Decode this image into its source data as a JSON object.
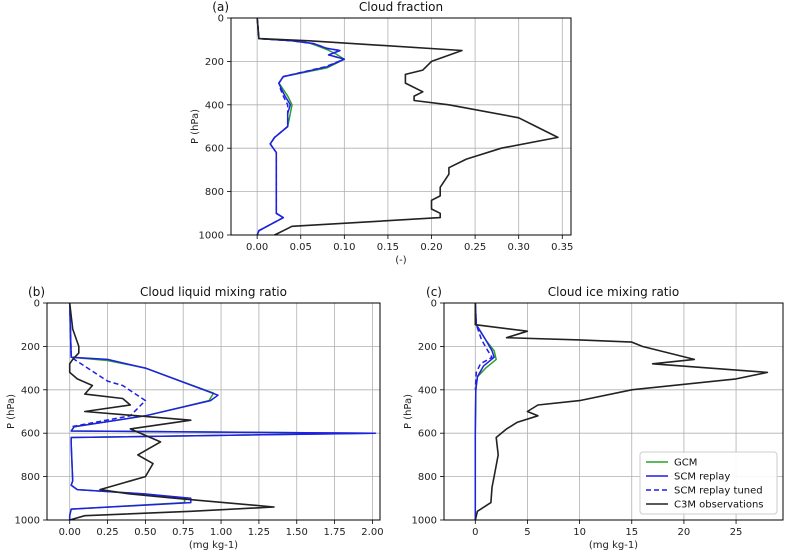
{
  "chart_data": [
    {
      "type": "line",
      "panel_label": "(a)",
      "title": "Cloud fraction",
      "xlabel": "(-)",
      "ylabel": "P (hPa)",
      "xlim": [
        -0.03,
        0.36
      ],
      "ylim": [
        1000,
        0
      ],
      "xticks": [
        "0.00",
        "0.05",
        "0.10",
        "0.15",
        "0.20",
        "0.25",
        "0.30",
        "0.35"
      ],
      "yticks": [
        "0",
        "200",
        "400",
        "600",
        "800",
        "1000"
      ],
      "grid": true,
      "series": [
        {
          "name": "GCM",
          "color": "#2ca02c",
          "dash": "solid",
          "x": [
            0.0,
            0.002,
            0.04,
            0.06,
            0.07,
            0.08,
            0.09,
            0.1,
            0.08,
            0.03,
            0.025,
            0.03,
            0.035,
            0.04,
            0.038,
            0.035,
            0.02,
            0.015,
            0.022,
            0.022,
            0.022,
            0.022,
            0.03,
            0.002,
            0.0
          ],
          "y": [
            0,
            95,
            105,
            115,
            130,
            145,
            165,
            190,
            230,
            270,
            300,
            330,
            360,
            400,
            440,
            500,
            550,
            580,
            620,
            700,
            800,
            900,
            920,
            980,
            1000
          ]
        },
        {
          "name": "SCM replay",
          "color": "#1f1fe6",
          "dash": "solid",
          "x": [
            0.0,
            0.002,
            0.04,
            0.065,
            0.08,
            0.095,
            0.082,
            0.1,
            0.08,
            0.03,
            0.025,
            0.028,
            0.032,
            0.038,
            0.035,
            0.035,
            0.02,
            0.015,
            0.022,
            0.022,
            0.022,
            0.022,
            0.03,
            0.002,
            0.0
          ],
          "y": [
            0,
            95,
            105,
            118,
            140,
            150,
            170,
            190,
            225,
            270,
            300,
            330,
            360,
            400,
            440,
            500,
            550,
            580,
            620,
            700,
            800,
            900,
            920,
            980,
            1000
          ]
        },
        {
          "name": "SCM replay tuned",
          "color": "#1f1fe6",
          "dash": "dashed",
          "x": [
            0.0,
            0.002,
            0.04,
            0.065,
            0.08,
            0.095,
            0.082,
            0.1,
            0.078,
            0.03,
            0.025,
            0.027,
            0.03,
            0.035,
            0.035,
            0.035,
            0.02,
            0.015,
            0.022,
            0.022,
            0.022,
            0.022,
            0.03,
            0.002,
            0.0
          ],
          "y": [
            0,
            95,
            105,
            118,
            140,
            150,
            170,
            190,
            225,
            270,
            300,
            330,
            360,
            400,
            440,
            500,
            550,
            580,
            620,
            700,
            800,
            900,
            920,
            980,
            1000
          ]
        },
        {
          "name": "C3M observations",
          "color": "#222222",
          "dash": "solid",
          "x": [
            0.0,
            0.002,
            0.06,
            0.235,
            0.2,
            0.19,
            0.17,
            0.17,
            0.19,
            0.18,
            0.18,
            0.22,
            0.3,
            0.32,
            0.345,
            0.28,
            0.24,
            0.22,
            0.22,
            0.21,
            0.21,
            0.2,
            0.2,
            0.21,
            0.21,
            0.04,
            0.03,
            0.02
          ],
          "y": [
            0,
            95,
            105,
            150,
            200,
            240,
            260,
            300,
            340,
            360,
            380,
            400,
            460,
            500,
            550,
            600,
            650,
            690,
            720,
            780,
            820,
            840,
            880,
            900,
            920,
            960,
            980,
            1000
          ]
        }
      ]
    },
    {
      "type": "line",
      "panel_label": "(b)",
      "title": "Cloud liquid mixing ratio",
      "xlabel": "(mg kg-1)",
      "ylabel": "P (hPa)",
      "xlim": [
        -0.15,
        2.05
      ],
      "ylim": [
        1000,
        0
      ],
      "xticks": [
        "0.00",
        "0.25",
        "0.50",
        "0.75",
        "1.00",
        "1.25",
        "1.50",
        "1.75",
        "2.00"
      ],
      "yticks": [
        "0",
        "200",
        "400",
        "600",
        "800",
        "1000"
      ],
      "grid": true,
      "series": [
        {
          "name": "GCM",
          "color": "#2ca02c",
          "dash": "solid",
          "x": [
            0,
            0.01,
            0.25,
            0.5,
            0.95,
            0.92,
            0.5,
            0.03,
            0.01,
            2.0,
            0.01,
            0.01,
            0.02,
            0.01,
            0.05,
            0.5,
            0.76,
            0.76,
            0.01,
            0.0,
            0.0
          ],
          "y": [
            0,
            250,
            265,
            300,
            415,
            450,
            520,
            570,
            590,
            600,
            620,
            650,
            820,
            840,
            860,
            880,
            900,
            920,
            950,
            980,
            1000
          ]
        },
        {
          "name": "SCM replay",
          "color": "#1f1fe6",
          "dash": "solid",
          "x": [
            0,
            0.01,
            0.25,
            0.5,
            0.98,
            0.93,
            0.5,
            0.03,
            0.01,
            2.02,
            0.01,
            0.01,
            0.02,
            0.01,
            0.05,
            0.5,
            0.8,
            0.8,
            0.01,
            0.0,
            0.0
          ],
          "y": [
            0,
            250,
            260,
            300,
            425,
            450,
            520,
            570,
            590,
            600,
            620,
            650,
            820,
            840,
            860,
            880,
            900,
            920,
            950,
            980,
            1000
          ]
        },
        {
          "name": "SCM replay tuned",
          "color": "#1f1fe6",
          "dash": "dashed",
          "x": [
            0,
            0.01,
            0.25,
            0.35,
            0.5,
            0.4,
            0.01
          ],
          "y": [
            0,
            250,
            360,
            380,
            450,
            520,
            570
          ]
        },
        {
          "name": "C3M observations",
          "color": "#222222",
          "dash": "solid",
          "x": [
            0.0,
            0.02,
            0.06,
            0.06,
            0.02,
            0.0,
            0.0,
            0.05,
            0.15,
            0.1,
            0.35,
            0.4,
            0.1,
            0.8,
            0.4,
            0.6,
            0.5,
            0.45,
            0.55,
            0.5,
            0.35,
            0.2,
            0.4,
            0.7,
            1.35,
            0.8,
            0.1,
            0.0
          ],
          "y": [
            0,
            120,
            200,
            230,
            260,
            280,
            320,
            350,
            380,
            420,
            440,
            470,
            500,
            540,
            580,
            640,
            680,
            700,
            740,
            800,
            830,
            860,
            880,
            900,
            940,
            960,
            980,
            1000
          ]
        }
      ]
    },
    {
      "type": "line",
      "panel_label": "(c)",
      "title": "Cloud ice mixing ratio",
      "xlabel": "(mg kg-1)",
      "ylabel": "P (hPa)",
      "xlim": [
        -3,
        29.5
      ],
      "ylim": [
        1000,
        0
      ],
      "xticks": [
        "0",
        "5",
        "10",
        "15",
        "20",
        "25"
      ],
      "yticks": [
        "0",
        "200",
        "400",
        "600",
        "800",
        "1000"
      ],
      "grid": true,
      "series": [
        {
          "name": "GCM",
          "color": "#2ca02c",
          "dash": "solid",
          "x": [
            0,
            0.1,
            1.0,
            1.8,
            2.0,
            1.0,
            0.2,
            0.05,
            0.0,
            0.0
          ],
          "y": [
            0,
            100,
            170,
            220,
            260,
            300,
            340,
            400,
            600,
            1000
          ]
        },
        {
          "name": "SCM replay",
          "color": "#1f1fe6",
          "dash": "solid",
          "x": [
            0,
            0.1,
            1.0,
            1.6,
            1.8,
            0.8,
            0.2,
            0.05,
            0.0,
            0.0
          ],
          "y": [
            0,
            100,
            170,
            220,
            250,
            290,
            340,
            400,
            600,
            1000
          ]
        },
        {
          "name": "SCM replay tuned",
          "color": "#1f1fe6",
          "dash": "dashed",
          "x": [
            0,
            0.1,
            0.6,
            1.2,
            1.6,
            0.5,
            0.1,
            0.0
          ],
          "y": [
            0,
            100,
            170,
            220,
            250,
            280,
            320,
            400
          ]
        },
        {
          "name": "C3M observations",
          "color": "#222222",
          "dash": "solid",
          "x": [
            0.0,
            0.0,
            5.0,
            3.0,
            10.0,
            15.0,
            16.0,
            21.0,
            17.0,
            28.0,
            25.0,
            15.0,
            10.0,
            6.0,
            5.0,
            6.0,
            4.0,
            3.0,
            2.0,
            2.2,
            1.8,
            1.6,
            1.5,
            0.2,
            0.0
          ],
          "y": [
            0,
            100,
            130,
            160,
            170,
            180,
            200,
            260,
            280,
            320,
            350,
            400,
            450,
            470,
            500,
            520,
            550,
            580,
            620,
            700,
            800,
            850,
            920,
            960,
            1000
          ]
        }
      ],
      "legend": {
        "position": "lower right",
        "entries": [
          "GCM",
          "SCM  replay",
          "SCM  replay tuned",
          "C3M observations"
        ]
      }
    }
  ]
}
